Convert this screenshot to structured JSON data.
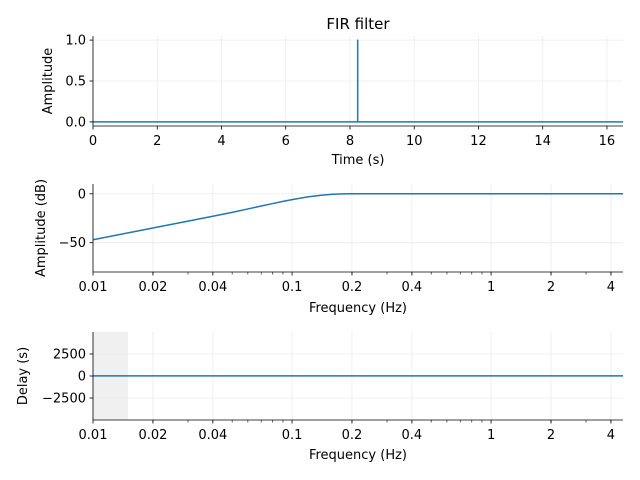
{
  "chart_data": [
    {
      "type": "line",
      "title": "FIR filter",
      "xlabel": "Time (s)",
      "ylabel": "Amplitude",
      "xlim": [
        0,
        16.5
      ],
      "ylim": [
        -0.05,
        1.05
      ],
      "xticks": [
        0,
        2,
        4,
        6,
        8,
        10,
        12,
        14,
        16
      ],
      "xtick_labels": [
        "0",
        "2",
        "4",
        "6",
        "8",
        "10",
        "12",
        "14",
        "16"
      ],
      "yticks": [
        0.0,
        0.5,
        1.0
      ],
      "ytick_labels": [
        "0.0",
        "0.5",
        "1.0"
      ],
      "grid": true,
      "color": "#1f77b4",
      "series": [
        {
          "x": [
            0,
            8.24,
            8.24,
            8.24,
            8.24,
            16.5
          ],
          "y": [
            0,
            0,
            1.0,
            1.0,
            0,
            0
          ]
        }
      ]
    },
    {
      "type": "line",
      "xlabel": "Frequency (Hz)",
      "ylabel": "Amplitude (dB)",
      "xscale": "log",
      "xlim": [
        0.01,
        4.6
      ],
      "ylim": [
        -80,
        10
      ],
      "xticks": [
        0.01,
        0.02,
        0.04,
        0.1,
        0.2,
        0.4,
        1,
        2,
        4
      ],
      "xtick_labels": [
        "0.01",
        "0.02",
        "0.04",
        "0.1",
        "0.2",
        "0.4",
        "1",
        "2",
        "4"
      ],
      "yticks": [
        0,
        -50
      ],
      "ytick_labels": [
        "0",
        "−50"
      ],
      "grid": true,
      "color": "#1f77b4",
      "series": [
        {
          "x": [
            0.01,
            0.015,
            0.02,
            0.03,
            0.04,
            0.05,
            0.06,
            0.07,
            0.08,
            0.09,
            0.1,
            0.12,
            0.14,
            0.16,
            0.18,
            0.2,
            0.3,
            0.5,
            1,
            2,
            4.6
          ],
          "y": [
            -47,
            -40,
            -35,
            -28,
            -23,
            -19,
            -15.5,
            -12.5,
            -10,
            -7.8,
            -6,
            -3.2,
            -1.5,
            -0.5,
            -0.1,
            0,
            0,
            0,
            0,
            0,
            0
          ]
        }
      ]
    },
    {
      "type": "line",
      "xlabel": "Frequency (Hz)",
      "ylabel": "Delay (s)",
      "xscale": "log",
      "xlim": [
        0.01,
        4.6
      ],
      "ylim": [
        -5000,
        5000
      ],
      "xticks": [
        0.01,
        0.02,
        0.04,
        0.1,
        0.2,
        0.4,
        1,
        2,
        4
      ],
      "xtick_labels": [
        "0.01",
        "0.02",
        "0.04",
        "0.1",
        "0.2",
        "0.4",
        "1",
        "2",
        "4"
      ],
      "yticks": [
        2500,
        0,
        -2500
      ],
      "ytick_labels": [
        "2500",
        "0",
        "−2500"
      ],
      "grid": true,
      "shaded_band_x": [
        0.01,
        0.015
      ],
      "shade_color": "#f0f0f0",
      "color": "#1f77b4",
      "series": [
        {
          "x": [
            0.01,
            4.6
          ],
          "y": [
            8.24,
            8.24
          ]
        }
      ]
    }
  ]
}
